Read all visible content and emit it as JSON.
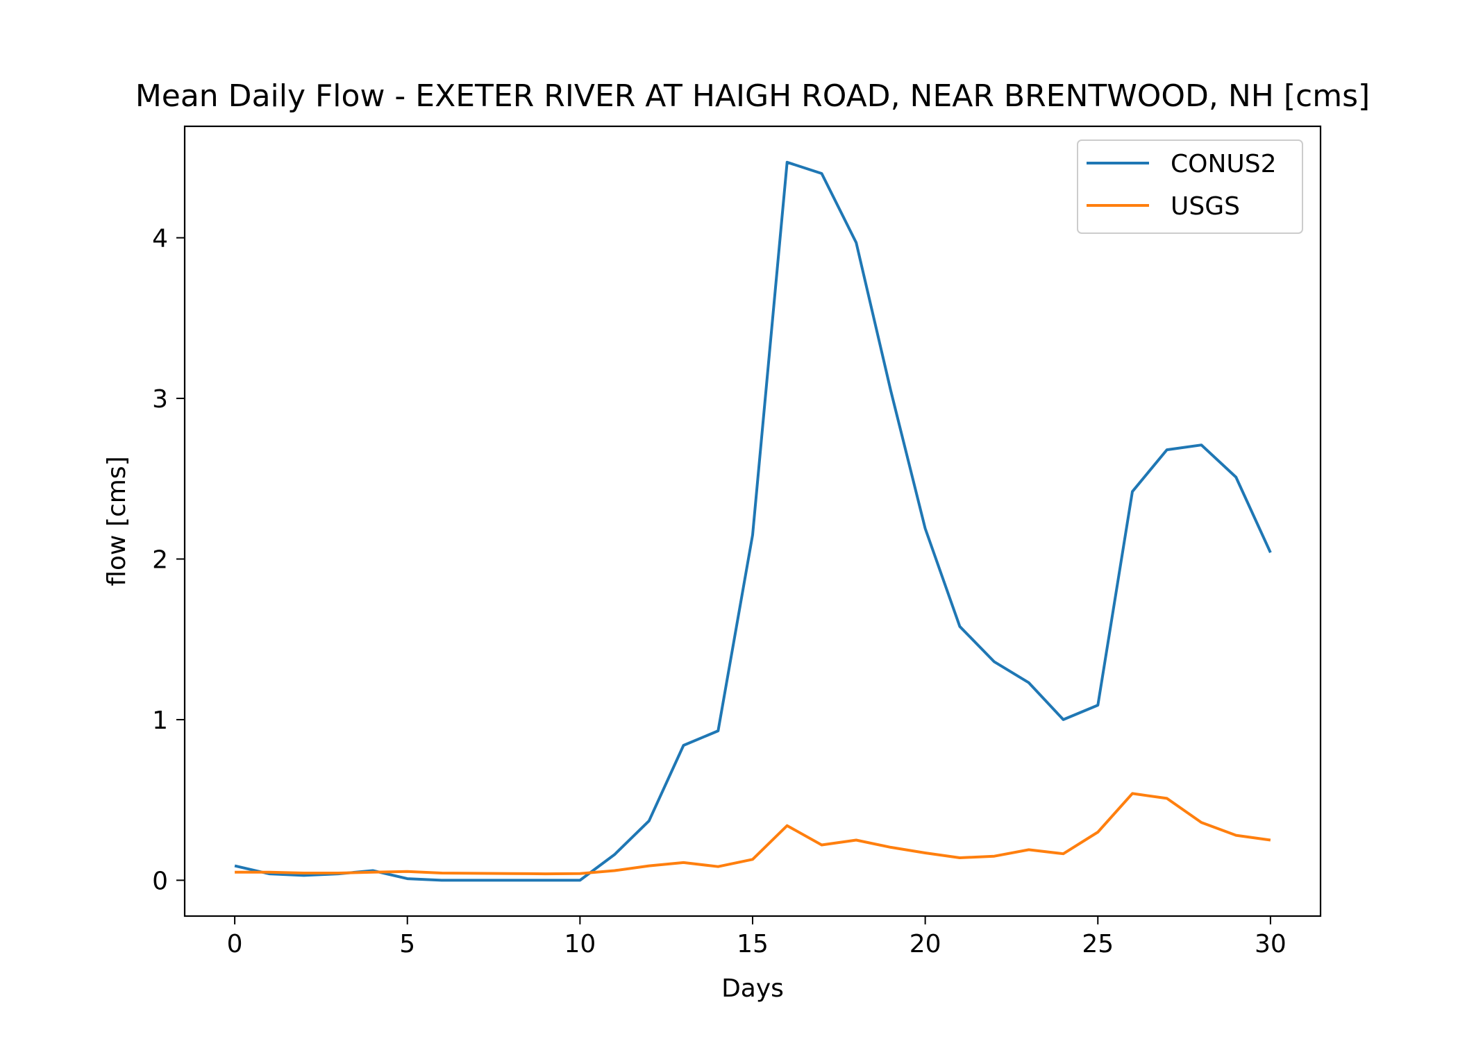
{
  "chart_data": {
    "type": "line",
    "title": "Mean Daily Flow - EXETER RIVER AT HAIGH ROAD, NEAR BRENTWOOD, NH [cms]",
    "xlabel": "Days",
    "ylabel": "flow [cms]",
    "xlim": [
      -1.45,
      31.45
    ],
    "ylim": [
      -0.223,
      4.694
    ],
    "xticks": [
      0,
      5,
      10,
      15,
      20,
      25,
      30
    ],
    "yticks": [
      0,
      1,
      2,
      3,
      4
    ],
    "grid": false,
    "legend_position": "top-right",
    "x": [
      0,
      1,
      2,
      3,
      4,
      5,
      6,
      7,
      8,
      9,
      10,
      11,
      12,
      13,
      14,
      15,
      16,
      17,
      18,
      19,
      20,
      21,
      22,
      23,
      24,
      25,
      26,
      27,
      28,
      29,
      30
    ],
    "series": [
      {
        "name": "CONUS2",
        "color": "#1f77b4",
        "values": [
          0.09,
          0.04,
          0.03,
          0.04,
          0.06,
          0.01,
          0.0,
          0.0,
          0.0,
          0.0,
          0.0,
          0.16,
          0.37,
          0.84,
          0.93,
          2.15,
          4.47,
          4.4,
          3.97,
          3.05,
          2.19,
          1.58,
          1.36,
          1.23,
          1.0,
          1.09,
          2.42,
          2.68,
          2.71,
          2.51,
          2.04
        ]
      },
      {
        "name": "USGS",
        "color": "#ff7f0e",
        "values": [
          0.05,
          0.05,
          0.045,
          0.045,
          0.05,
          0.055,
          0.045,
          0.043,
          0.042,
          0.04,
          0.042,
          0.06,
          0.09,
          0.11,
          0.085,
          0.13,
          0.34,
          0.22,
          0.25,
          0.205,
          0.17,
          0.14,
          0.15,
          0.19,
          0.165,
          0.3,
          0.54,
          0.51,
          0.36,
          0.28,
          0.25
        ]
      }
    ]
  }
}
